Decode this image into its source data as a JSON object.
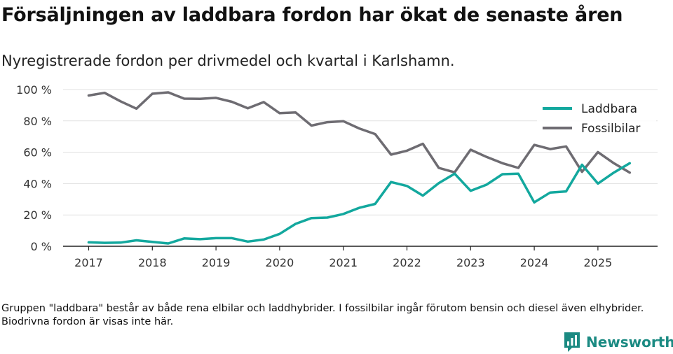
{
  "header": {
    "title": "Försäljningen av laddbara fordon har ökat de senaste åren",
    "subtitle": "Nyregistrerade fordon per drivmedel och kvartal i Karlshamn."
  },
  "footer": {
    "note": "Gruppen \"laddbara\" består av både rena elbilar och laddhybrider. I fossilbilar ingår förutom bensin och diesel även elhybrider. Biodrivna fordon är visas inte här.",
    "brand_name": "Newsworthy",
    "brand_icon": "newsworthy-logo-icon",
    "brand_color": "#1b8a82"
  },
  "chart_data": {
    "type": "line",
    "title": "Försäljningen av laddbara fordon har ökat de senaste åren",
    "subtitle": "Nyregistrerade fordon per drivmedel och kvartal i Karlshamn.",
    "xlabel": "",
    "ylabel": "",
    "x_quarters": [
      "2017 Q1",
      "2017 Q2",
      "2017 Q3",
      "2017 Q4",
      "2018 Q1",
      "2018 Q2",
      "2018 Q3",
      "2018 Q4",
      "2019 Q1",
      "2019 Q2",
      "2019 Q3",
      "2019 Q4",
      "2020 Q1",
      "2020 Q2",
      "2020 Q3",
      "2020 Q4",
      "2021 Q1",
      "2021 Q2",
      "2021 Q3",
      "2021 Q4",
      "2022 Q1",
      "2022 Q2",
      "2022 Q3",
      "2022 Q4",
      "2023 Q1",
      "2023 Q2",
      "2023 Q3",
      "2023 Q4",
      "2024 Q1",
      "2024 Q2",
      "2024 Q3",
      "2024 Q4",
      "2025 Q1",
      "2025 Q2",
      "2025 Q3"
    ],
    "x_tick_labels": [
      "2017",
      "2018",
      "2019",
      "2020",
      "2021",
      "2022",
      "2023",
      "2024",
      "2025"
    ],
    "y_tick_labels": [
      "0 %",
      "20 %",
      "40 %",
      "60 %",
      "80 %",
      "100 %"
    ],
    "ylim": [
      0,
      100
    ],
    "y_ticks": [
      0,
      20,
      40,
      60,
      80,
      100
    ],
    "grid": true,
    "legend_position": "top-right",
    "series": [
      {
        "name": "Laddbara",
        "color": "#13a89e",
        "values": [
          2.5,
          2.2,
          2.3,
          3.8,
          2.8,
          1.8,
          5.0,
          4.5,
          5.2,
          5.2,
          3.0,
          4.3,
          7.9,
          14.3,
          18.0,
          18.3,
          20.6,
          24.5,
          27.0,
          41.0,
          38.5,
          32.3,
          40.3,
          46.3,
          35.4,
          39.3,
          46.0,
          46.3,
          28.0,
          34.3,
          35.0,
          52.0,
          40.0,
          47.0,
          53.0
        ]
      },
      {
        "name": "Fossilbilar",
        "color": "#6e6c72",
        "values": [
          96.2,
          97.9,
          92.5,
          87.8,
          97.3,
          98.2,
          94.2,
          94.1,
          94.7,
          92.2,
          88.1,
          92.0,
          84.9,
          85.4,
          77.0,
          79.2,
          79.8,
          75.2,
          71.6,
          58.5,
          61.0,
          65.4,
          50.0,
          47.2,
          61.6,
          57.0,
          53.0,
          50.0,
          64.7,
          62.0,
          63.7,
          47.5,
          60.1,
          53.0,
          47.0
        ]
      }
    ]
  }
}
